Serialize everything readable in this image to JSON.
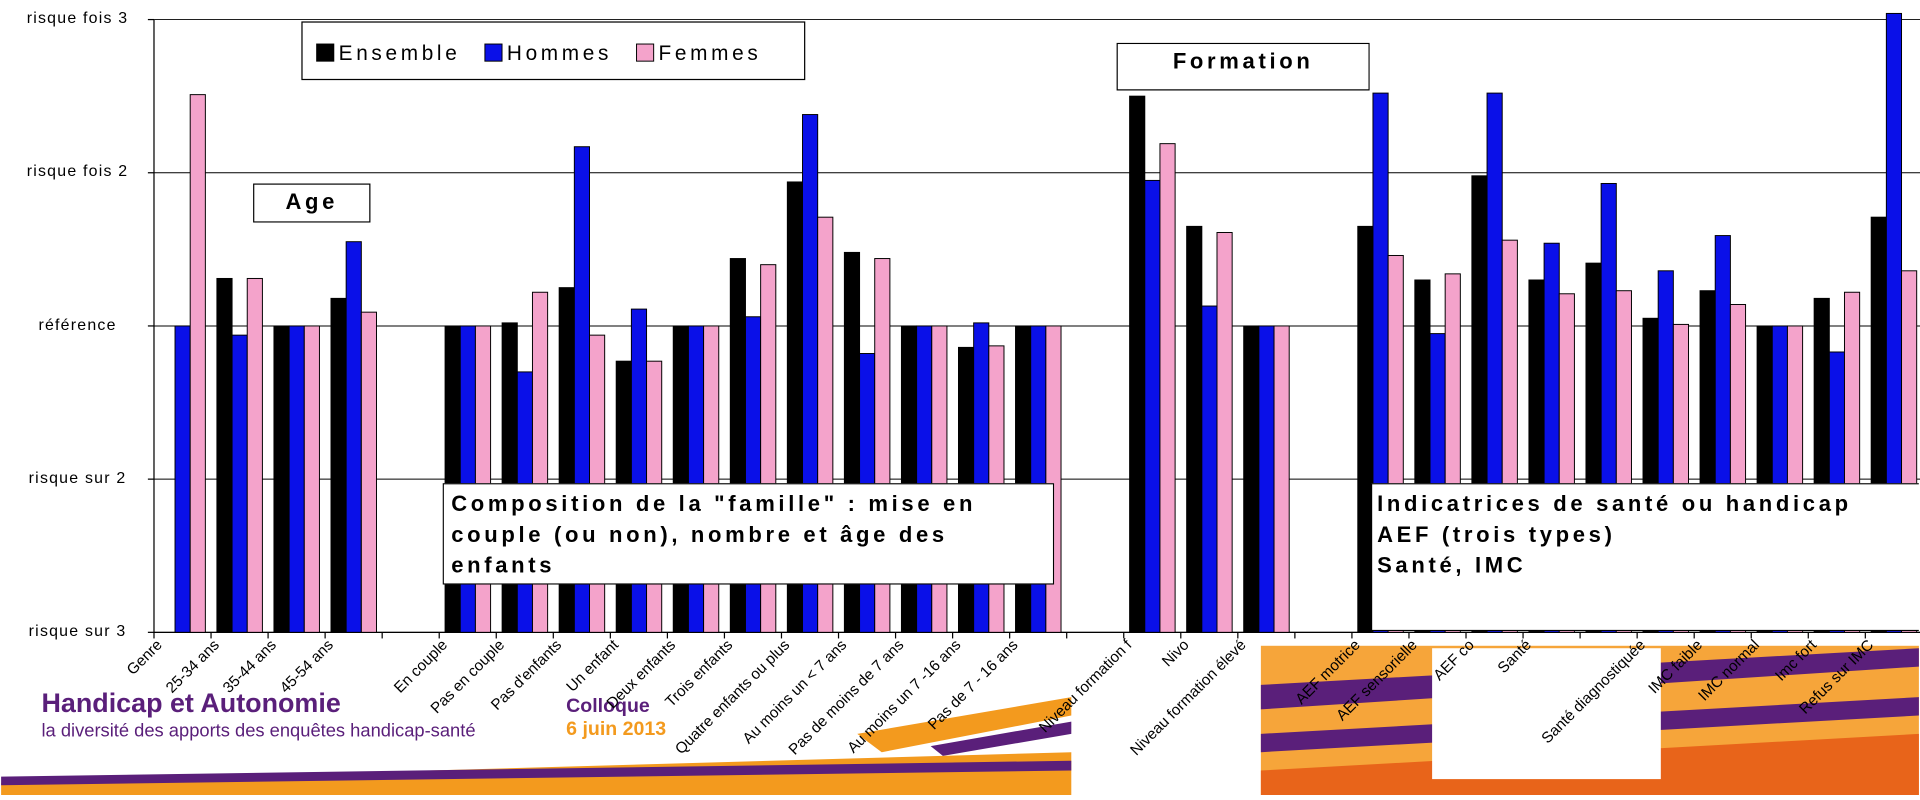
{
  "chart_data": {
    "type": "bar",
    "categories": [
      "Genre",
      "25-34 ans",
      "35-44 ans",
      "45-54 ans",
      null,
      "En couple",
      "Pas en couple",
      "Pas d'enfants",
      "Un enfant",
      "Deux enfants",
      "Trois enfants",
      "Quatre enfants ou plus",
      "Au moins un  < 7 ans",
      "Pas de moins de 7 ans",
      "Au moins un 7 -16 ans",
      "Pas de 7 - 16 ans",
      null,
      "Niveau formation f",
      "Nivo",
      "Niveau formation élevé",
      null,
      "AEF motrice",
      "AEF sensorielle",
      "AEF co",
      "Santé",
      null,
      "Santé diagnostiquée",
      "IMC faible",
      "IMC normal",
      "Imc fort",
      "Refus sur IMC"
    ],
    "series": [
      {
        "name": "Ensemble",
        "color": "#000000",
        "values": [
          null,
          1.31,
          1,
          1.18,
          null,
          1,
          1.02,
          1.25,
          0.77,
          1,
          1.44,
          1.94,
          1.48,
          1,
          0.86,
          1,
          null,
          2.5,
          1.65,
          1,
          null,
          1.65,
          1.3,
          1.98,
          1.3,
          1.41,
          1.05,
          1.23,
          1,
          1.18,
          1.71
        ]
      },
      {
        "name": "Hommes",
        "color": "#0a10e8",
        "values": [
          1,
          0.94,
          1,
          1.55,
          null,
          1,
          0.7,
          2.17,
          1.11,
          1,
          1.06,
          2.38,
          0.82,
          1,
          1.02,
          1,
          null,
          1.95,
          1.13,
          1,
          null,
          2.52,
          0.95,
          2.52,
          1.54,
          1.93,
          1.36,
          1.59,
          1,
          0.83,
          3.04
        ]
      },
      {
        "name": "Femmes",
        "color": "#f4a3cb",
        "values": [
          2.51,
          1.31,
          1,
          1.09,
          null,
          1,
          1.22,
          0.94,
          0.77,
          1,
          1.4,
          1.71,
          1.44,
          1,
          0.87,
          1,
          null,
          2.19,
          1.61,
          1,
          null,
          1.46,
          1.34,
          1.56,
          1.21,
          1.23,
          1.01,
          1.14,
          1,
          1.22,
          1.36
        ]
      }
    ],
    "ylim": [
      -1,
      3
    ],
    "yticks": [
      {
        "value": -1,
        "label": "risque sur 3"
      },
      {
        "value": 0,
        "label": "risque sur 2"
      },
      {
        "value": 1,
        "label": "référence"
      },
      {
        "value": 2,
        "label": "risque fois 2"
      },
      {
        "value": 3,
        "label": "risque fois 3"
      }
    ],
    "grid": true,
    "legend": "top-left",
    "annotations": {
      "age": "Age",
      "formation": "Formation",
      "famille": "Composition de la \"famille\" : mise en couple (ou non), nombre et âge des enfants",
      "sante": [
        "Indicatrices de santé ou handicap",
        "AEF (trois types)",
        "Santé, IMC"
      ]
    }
  },
  "banner": {
    "title": "Handicap et Autonomie",
    "subtitle": "la diversité des apports des enquêtes handicap-santé",
    "event": "Colloque",
    "date": "6 juin 2013"
  }
}
